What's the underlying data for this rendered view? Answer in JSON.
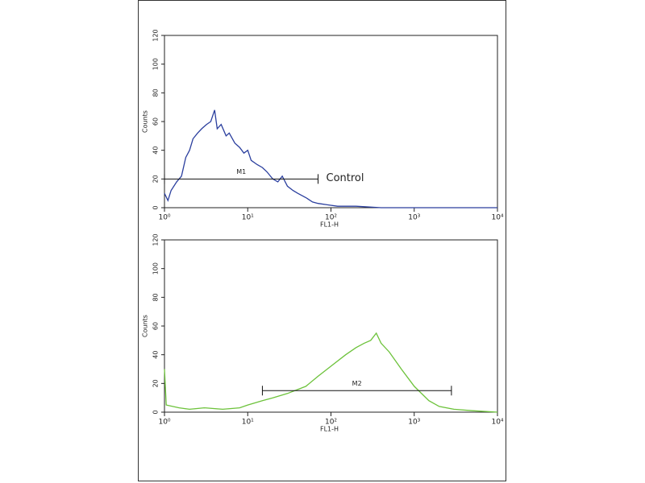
{
  "chart_data": [
    {
      "type": "line",
      "xlabel": "FL1-H",
      "ylabel": "Counts",
      "color": "#2b3f9e",
      "log_x": true,
      "xlim": [
        1,
        10000
      ],
      "ylim": [
        0,
        120
      ],
      "xticks": [
        {
          "value": 1,
          "label": "10⁰"
        },
        {
          "value": 10,
          "label": "10¹"
        },
        {
          "value": 100,
          "label": "10²"
        },
        {
          "value": 1000,
          "label": "10³"
        },
        {
          "value": 10000,
          "label": "10⁴"
        }
      ],
      "yticks": [
        0,
        20,
        40,
        60,
        80,
        100,
        120
      ],
      "x": [
        1,
        1.1,
        1.2,
        1.4,
        1.6,
        1.8,
        2,
        2.2,
        2.5,
        2.8,
        3.2,
        3.6,
        4,
        4.3,
        4.8,
        5.5,
        6,
        7,
        8,
        9,
        10,
        11,
        13,
        15,
        17,
        20,
        23,
        26,
        30,
        35,
        40,
        50,
        60,
        70,
        90,
        120,
        200,
        400,
        1000,
        10000
      ],
      "values": [
        10,
        5,
        12,
        18,
        22,
        35,
        40,
        48,
        52,
        55,
        58,
        60,
        68,
        55,
        58,
        50,
        52,
        45,
        42,
        38,
        40,
        33,
        30,
        28,
        25,
        20,
        18,
        22,
        15,
        12,
        10,
        7,
        4,
        3,
        2,
        1,
        1,
        0,
        0,
        0
      ],
      "markers": [
        {
          "label": "M1",
          "x": [
            1,
            70
          ],
          "y": 20
        }
      ],
      "annotation": "Control"
    },
    {
      "type": "line",
      "xlabel": "FL1-H",
      "ylabel": "Counts",
      "color": "#6cc23a",
      "log_x": true,
      "xlim": [
        1,
        10000
      ],
      "ylim": [
        0,
        120
      ],
      "xticks": [
        {
          "value": 1,
          "label": "10⁰"
        },
        {
          "value": 10,
          "label": "10¹"
        },
        {
          "value": 100,
          "label": "10²"
        },
        {
          "value": 1000,
          "label": "10³"
        },
        {
          "value": 10000,
          "label": "10⁴"
        }
      ],
      "yticks": [
        0,
        20,
        40,
        60,
        80,
        100,
        120
      ],
      "x": [
        1,
        1.05,
        1.5,
        2,
        3,
        5,
        8,
        10,
        15,
        20,
        30,
        50,
        70,
        100,
        150,
        200,
        250,
        300,
        350,
        400,
        500,
        700,
        1000,
        1500,
        2000,
        3000,
        5000,
        10000
      ],
      "values": [
        30,
        5,
        3,
        2,
        3,
        2,
        3,
        5,
        8,
        10,
        13,
        18,
        25,
        32,
        40,
        45,
        48,
        50,
        55,
        48,
        42,
        30,
        18,
        8,
        4,
        2,
        1,
        0
      ],
      "markers": [
        {
          "label": "M2",
          "x": [
            15,
            2800
          ],
          "y": 15
        }
      ]
    }
  ]
}
